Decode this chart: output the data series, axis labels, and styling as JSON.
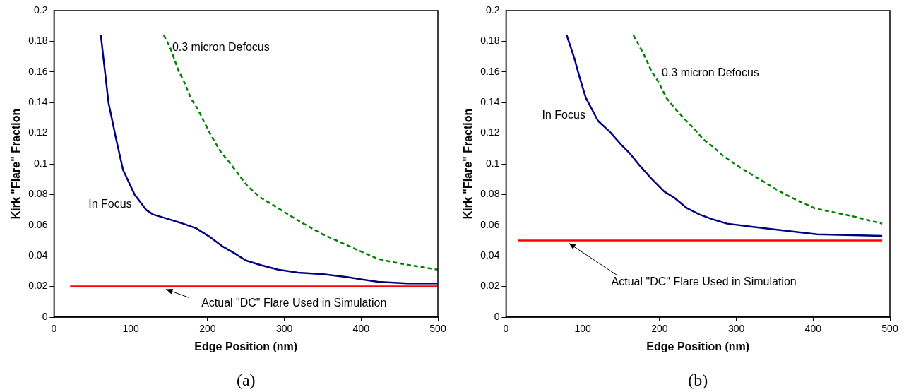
{
  "chart_data": [
    {
      "type": "line",
      "xlabel": "Edge Position (nm)",
      "ylabel": "Kirk \"Flare\" Fraction",
      "xlim": [
        0,
        500
      ],
      "ylim": [
        0,
        0.2
      ],
      "xticks": [
        0,
        100,
        200,
        300,
        400,
        500
      ],
      "yticks": [
        0,
        0.02,
        0.04,
        0.06,
        0.08,
        0.1,
        0.12,
        0.14,
        0.16,
        0.18,
        0.2
      ],
      "grid": false,
      "legend": false,
      "marker": "none",
      "series": [
        {
          "name": "In Focus",
          "color": "#000080",
          "line_style": "solid",
          "x": [
            61,
            71,
            81,
            90,
            105,
            120,
            129,
            149,
            168,
            185,
            204,
            220,
            234,
            250,
            269,
            292,
            318,
            351,
            383,
            422,
            460,
            500
          ],
          "values": [
            0.184,
            0.14,
            0.116,
            0.096,
            0.08,
            0.07,
            0.067,
            0.064,
            0.061,
            0.058,
            0.052,
            0.046,
            0.042,
            0.037,
            0.034,
            0.031,
            0.029,
            0.028,
            0.026,
            0.023,
            0.022,
            0.022
          ]
        },
        {
          "name": "0.3 micron Defocus",
          "color": "#008000",
          "line_style": "dashed",
          "x": [
            143,
            152,
            162,
            170,
            178,
            188,
            195,
            204,
            217,
            230,
            242,
            253,
            269,
            286,
            305,
            325,
            350,
            377,
            399,
            422,
            450,
            500
          ],
          "values": [
            0.184,
            0.175,
            0.161,
            0.153,
            0.143,
            0.135,
            0.128,
            0.119,
            0.108,
            0.1,
            0.092,
            0.085,
            0.078,
            0.073,
            0.067,
            0.061,
            0.054,
            0.048,
            0.043,
            0.038,
            0.035,
            0.031
          ]
        },
        {
          "color": "#ff0000",
          "line_style": "solid",
          "x": [
            21,
            500
          ],
          "values": [
            0.02,
            0.02
          ]
        }
      ],
      "annotations": [
        {
          "text": "Actual \"DC\" Flare Used in Simulation",
          "x": 146,
          "y": 0.02
        },
        "(a)"
      ]
    },
    {
      "type": "line",
      "xlabel": "Edge Position (nm)",
      "ylabel": "Kirk \"Flare\" Fraction",
      "xlim": [
        0,
        500
      ],
      "ylim": [
        0,
        0.2
      ],
      "xticks": [
        0,
        100,
        200,
        300,
        400,
        500
      ],
      "yticks": [
        0,
        0.02,
        0.04,
        0.06,
        0.08,
        0.1,
        0.12,
        0.14,
        0.16,
        0.18,
        0.2
      ],
      "grid": false,
      "legend": false,
      "marker": "none",
      "series": [
        {
          "name": "In Focus",
          "color": "#000080",
          "line_style": "solid",
          "x": [
            79,
            89,
            95,
            104,
            120,
            135,
            151,
            161,
            174,
            190,
            206,
            219,
            236,
            252,
            268,
            288,
            320,
            353,
            405,
            490
          ],
          "values": [
            0.184,
            0.169,
            0.158,
            0.143,
            0.128,
            0.121,
            0.112,
            0.107,
            0.099,
            0.09,
            0.082,
            0.078,
            0.071,
            0.067,
            0.064,
            0.061,
            0.059,
            0.057,
            0.054,
            0.053
          ]
        },
        {
          "name": "0.3 micron Defocus",
          "color": "#008000",
          "line_style": "dashed",
          "x": [
            166,
            180,
            190,
            198,
            209,
            222,
            235,
            245,
            257,
            270,
            281,
            292,
            304,
            320,
            337,
            353,
            372,
            402,
            450,
            490
          ],
          "values": [
            0.184,
            0.171,
            0.16,
            0.154,
            0.143,
            0.135,
            0.128,
            0.123,
            0.116,
            0.111,
            0.106,
            0.102,
            0.098,
            0.093,
            0.088,
            0.083,
            0.078,
            0.071,
            0.066,
            0.061
          ]
        },
        {
          "color": "#ff0000",
          "line_style": "solid",
          "x": [
            16,
            490
          ],
          "values": [
            0.05,
            0.05
          ]
        }
      ],
      "annotations": [
        {
          "text": "Actual \"DC\" Flare Used in Simulation",
          "x": 82,
          "y": 0.05
        },
        "(b)"
      ]
    }
  ]
}
